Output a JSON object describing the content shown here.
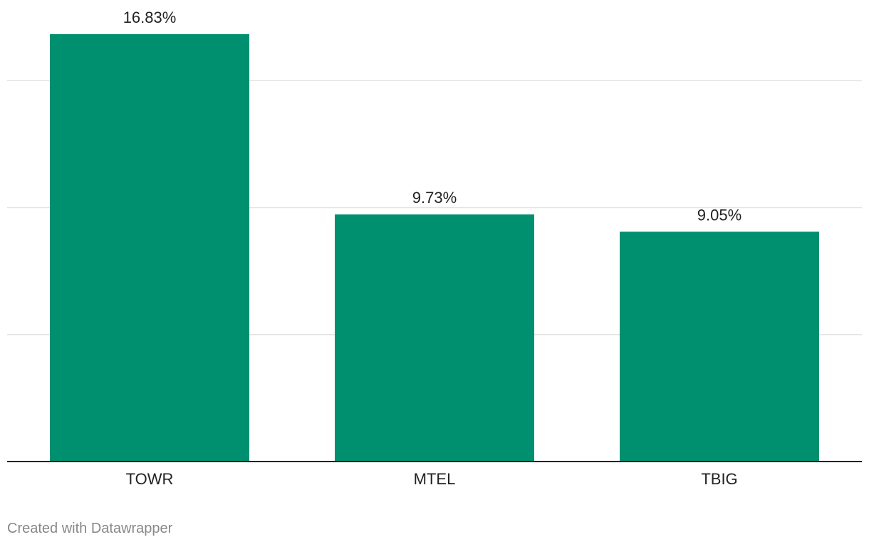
{
  "chart_data": {
    "type": "bar",
    "categories": [
      "TOWR",
      "MTEL",
      "TBIG"
    ],
    "values": [
      16.83,
      9.73,
      9.05
    ],
    "value_labels": [
      "16.83%",
      "9.73%",
      "9.05%"
    ],
    "title": "",
    "xlabel": "",
    "ylabel": "",
    "ylim": [
      0,
      16.83
    ],
    "gridlines": [
      5,
      10,
      15
    ],
    "grid": true,
    "bar_color": "#00906f"
  },
  "footer": {
    "credit": "Created with Datawrapper"
  }
}
